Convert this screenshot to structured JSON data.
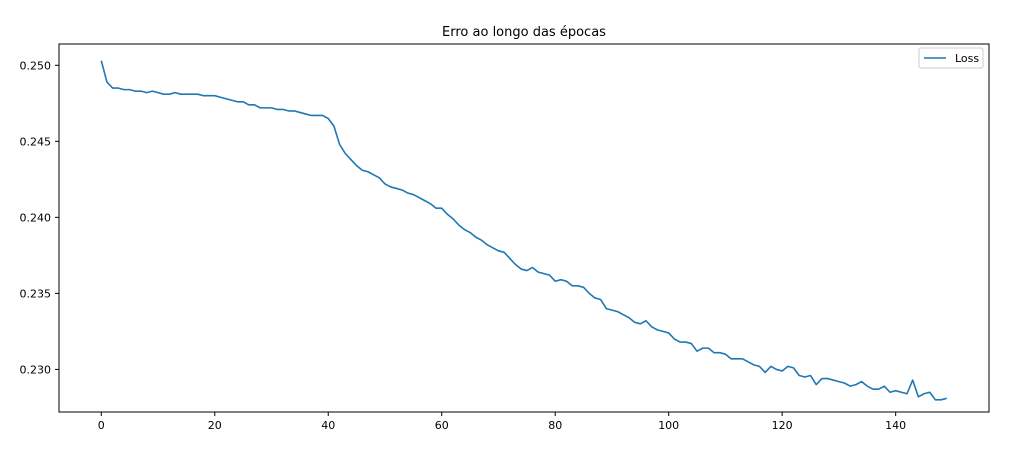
{
  "chart_data": {
    "type": "line",
    "title": "Erro ao longo das épocas",
    "xlabel": "",
    "ylabel": "",
    "xlim": [
      -7.45,
      156.45
    ],
    "ylim": [
      0.2272,
      0.2514
    ],
    "x_ticks": [
      0,
      20,
      40,
      60,
      80,
      100,
      120,
      140
    ],
    "y_ticks": [
      0.23,
      0.235,
      0.24,
      0.245,
      0.25
    ],
    "y_tick_labels": [
      "0.230",
      "0.235",
      "0.240",
      "0.245",
      "0.250"
    ],
    "grid": false,
    "legend_position": "top-right",
    "series": [
      {
        "name": "Loss",
        "color": "#1f77b4",
        "values": [
          0.2503,
          0.2489,
          0.2485,
          0.2485,
          0.2484,
          0.2484,
          0.2483,
          0.2483,
          0.2482,
          0.2483,
          0.2482,
          0.2481,
          0.2481,
          0.2482,
          0.2481,
          0.2481,
          0.2481,
          0.2481,
          0.248,
          0.248,
          0.248,
          0.2479,
          0.2478,
          0.2477,
          0.2476,
          0.2476,
          0.2474,
          0.2474,
          0.2472,
          0.2472,
          0.2472,
          0.2471,
          0.2471,
          0.247,
          0.247,
          0.2469,
          0.2468,
          0.2467,
          0.2467,
          0.2467,
          0.2465,
          0.246,
          0.2448,
          0.2442,
          0.2438,
          0.2434,
          0.2431,
          0.243,
          0.2428,
          0.2426,
          0.2422,
          0.242,
          0.2419,
          0.2418,
          0.2416,
          0.2415,
          0.2413,
          0.2411,
          0.2409,
          0.2406,
          0.2406,
          0.2402,
          0.2399,
          0.2395,
          0.2392,
          0.239,
          0.2387,
          0.2385,
          0.2382,
          0.238,
          0.2378,
          0.2377,
          0.2373,
          0.2369,
          0.2366,
          0.2365,
          0.2367,
          0.2364,
          0.2363,
          0.2362,
          0.2358,
          0.2359,
          0.2358,
          0.2355,
          0.2355,
          0.2354,
          0.235,
          0.2347,
          0.2346,
          0.234,
          0.2339,
          0.2338,
          0.2336,
          0.2334,
          0.2331,
          0.233,
          0.2332,
          0.2328,
          0.2326,
          0.2325,
          0.2324,
          0.232,
          0.2318,
          0.2318,
          0.2317,
          0.2312,
          0.2314,
          0.2314,
          0.2311,
          0.2311,
          0.231,
          0.2307,
          0.2307,
          0.2307,
          0.2305,
          0.2303,
          0.2302,
          0.2298,
          0.2302,
          0.23,
          0.2299,
          0.2302,
          0.2301,
          0.2296,
          0.2295,
          0.2296,
          0.229,
          0.2294,
          0.2294,
          0.2293,
          0.2292,
          0.2291,
          0.2289,
          0.229,
          0.2292,
          0.2289,
          0.2287,
          0.2287,
          0.2289,
          0.2285,
          0.2286,
          0.2285,
          0.2284,
          0.2293,
          0.2282,
          0.2284,
          0.2285,
          0.228,
          0.228,
          0.2281
        ]
      }
    ]
  }
}
